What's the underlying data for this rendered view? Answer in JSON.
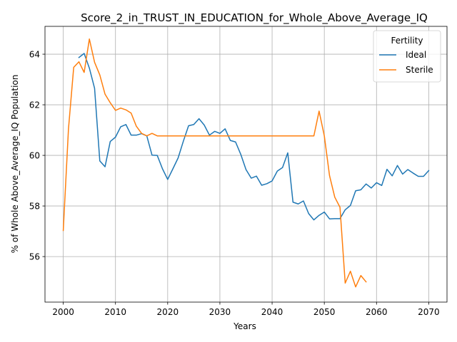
{
  "chart_data": {
    "type": "line",
    "title": "Score_2_in_TRUST_IN_EDUCATION_for_Whole_Above_Average_IQ",
    "xlabel": "Years",
    "ylabel": "% of Whole Above_Average_IQ Population",
    "xlim": [
      1996.5,
      2073.5
    ],
    "ylim": [
      54.2,
      65.1
    ],
    "xticks": [
      2000,
      2010,
      2020,
      2030,
      2040,
      2050,
      2060,
      2070
    ],
    "yticks": [
      56,
      58,
      60,
      62,
      64
    ],
    "grid": true,
    "legend": {
      "title": "Fertility",
      "placement": "top-right"
    },
    "series": [
      {
        "name": "Ideal",
        "color": "#1f77b4",
        "x": [
          2003,
          2004,
          2005,
          2006,
          2007,
          2008,
          2009,
          2010,
          2011,
          2012,
          2013,
          2014,
          2015,
          2016,
          2017,
          2018,
          2019,
          2020,
          2021,
          2022,
          2023,
          2024,
          2025,
          2026,
          2027,
          2028,
          2029,
          2030,
          2031,
          2032,
          2033,
          2034,
          2035,
          2036,
          2037,
          2038,
          2039,
          2040,
          2041,
          2042,
          2043,
          2044,
          2045,
          2046,
          2047,
          2048,
          2049,
          2050,
          2051,
          2052,
          2053,
          2054,
          2055,
          2056,
          2057,
          2058,
          2059,
          2060,
          2061,
          2062,
          2063,
          2064,
          2065,
          2066,
          2067,
          2068,
          2069,
          2070
        ],
        "values": [
          63.87,
          64.03,
          63.45,
          62.65,
          59.78,
          59.55,
          60.55,
          60.72,
          61.13,
          61.22,
          60.8,
          60.8,
          60.86,
          60.77,
          60.01,
          60.0,
          59.47,
          59.05,
          59.47,
          59.9,
          60.56,
          61.17,
          61.22,
          61.45,
          61.2,
          60.8,
          60.95,
          60.87,
          61.05,
          60.59,
          60.53,
          60.04,
          59.44,
          59.1,
          59.18,
          58.82,
          58.88,
          58.99,
          59.38,
          59.52,
          60.1,
          58.15,
          58.08,
          58.2,
          57.7,
          57.45,
          57.63,
          57.76,
          57.49,
          57.5,
          57.5,
          57.85,
          58.02,
          58.6,
          58.64,
          58.87,
          58.71,
          58.92,
          58.81,
          59.45,
          59.19,
          59.6,
          59.26,
          59.44,
          59.3,
          59.17,
          59.17,
          59.4
        ]
      },
      {
        "name": "Sterile",
        "color": "#ff7f0e",
        "x": [
          2000,
          2001,
          2002,
          2003,
          2004,
          2005,
          2006,
          2007,
          2008,
          2009,
          2010,
          2011,
          2012,
          2013,
          2014,
          2015,
          2016,
          2017,
          2018,
          2019,
          2020,
          2021,
          2022,
          2023,
          2024,
          2025,
          2026,
          2027,
          2028,
          2029,
          2030,
          2031,
          2032,
          2033,
          2034,
          2035,
          2036,
          2037,
          2038,
          2039,
          2040,
          2041,
          2042,
          2043,
          2044,
          2045,
          2046,
          2047,
          2048,
          2049,
          2050,
          2051,
          2052,
          2053,
          2054,
          2055,
          2056,
          2057,
          2058
        ],
        "values": [
          57.03,
          61.05,
          63.48,
          63.7,
          63.28,
          64.6,
          63.68,
          63.18,
          62.42,
          62.08,
          61.78,
          61.87,
          61.8,
          61.67,
          61.15,
          60.87,
          60.77,
          60.87,
          60.77,
          60.77,
          60.77,
          60.77,
          60.77,
          60.77,
          60.77,
          60.77,
          60.77,
          60.77,
          60.77,
          60.77,
          60.77,
          60.77,
          60.77,
          60.77,
          60.77,
          60.77,
          60.77,
          60.77,
          60.77,
          60.77,
          60.77,
          60.77,
          60.77,
          60.77,
          60.77,
          60.77,
          60.77,
          60.77,
          60.77,
          61.75,
          60.77,
          59.2,
          58.35,
          57.95,
          54.95,
          55.42,
          54.8,
          55.25,
          55.0
        ]
      }
    ]
  }
}
